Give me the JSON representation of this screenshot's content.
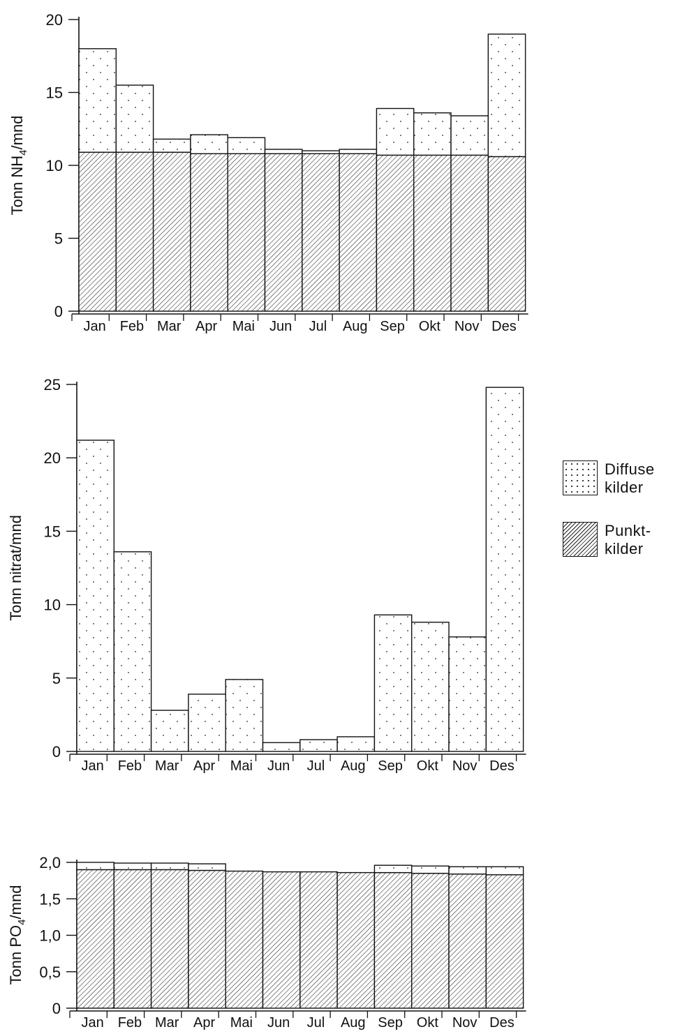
{
  "legend": {
    "diffuse_label": [
      "Diffuse",
      "kilder"
    ],
    "point_label": [
      "Punkt-",
      "kilder"
    ]
  },
  "chart_data": [
    {
      "type": "bar",
      "stacked": true,
      "ylabel": "Tonn NH4/mnd",
      "ylim": [
        0,
        20
      ],
      "yticks": [
        "0",
        "5",
        "10",
        "15",
        "20"
      ],
      "categories": [
        "Jan",
        "Feb",
        "Mar",
        "Apr",
        "Mai",
        "Jun",
        "Jul",
        "Aug",
        "Sep",
        "Okt",
        "Nov",
        "Des"
      ],
      "series": [
        {
          "name": "Punkt-kilder",
          "values": [
            10.9,
            10.9,
            10.9,
            10.8,
            10.8,
            10.8,
            10.8,
            10.8,
            10.7,
            10.7,
            10.7,
            10.6
          ]
        },
        {
          "name": "Diffuse kilder",
          "values": [
            7.1,
            4.6,
            0.9,
            1.3,
            1.1,
            0.3,
            0.2,
            0.3,
            3.2,
            2.9,
            2.7,
            8.4
          ]
        }
      ],
      "legend": "right"
    },
    {
      "type": "bar",
      "stacked": true,
      "ylabel": "Tonn nitrat/mnd",
      "ylim": [
        0,
        25
      ],
      "yticks": [
        "0",
        "5",
        "10",
        "15",
        "20",
        "25"
      ],
      "categories": [
        "Jan",
        "Feb",
        "Mar",
        "Apr",
        "Mai",
        "Jun",
        "Jul",
        "Aug",
        "Sep",
        "Okt",
        "Nov",
        "Des"
      ],
      "series": [
        {
          "name": "Punkt-kilder",
          "values": [
            0,
            0,
            0,
            0,
            0,
            0,
            0,
            0,
            0,
            0,
            0,
            0
          ]
        },
        {
          "name": "Diffuse kilder",
          "values": [
            21.2,
            13.6,
            2.8,
            3.9,
            4.9,
            0.6,
            0.8,
            1.0,
            9.3,
            8.8,
            7.8,
            24.8
          ]
        }
      ],
      "legend": "right"
    },
    {
      "type": "bar",
      "stacked": true,
      "ylabel": "Tonn PO4/mnd",
      "ylim": [
        0,
        2.0
      ],
      "yticks": [
        "0",
        "0,5",
        "1,0",
        "1,5",
        "2,0"
      ],
      "categories": [
        "Jan",
        "Feb",
        "Mar",
        "Apr",
        "Mai",
        "Jun",
        "Jul",
        "Aug",
        "Sep",
        "Okt",
        "Nov",
        "Des"
      ],
      "series": [
        {
          "name": "Punkt-kilder",
          "values": [
            1.9,
            1.9,
            1.9,
            1.89,
            1.88,
            1.87,
            1.87,
            1.86,
            1.86,
            1.85,
            1.84,
            1.83
          ]
        },
        {
          "name": "Diffuse kilder",
          "values": [
            0.1,
            0.09,
            0.09,
            0.09,
            0,
            0,
            0,
            0,
            0.1,
            0.1,
            0.1,
            0.11
          ]
        }
      ],
      "legend": "right"
    }
  ]
}
